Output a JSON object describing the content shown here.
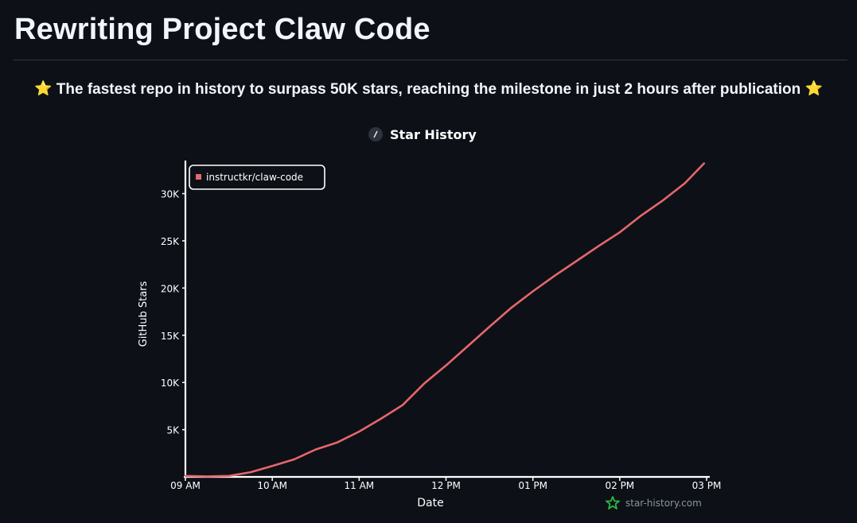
{
  "page": {
    "title": "Rewriting Project Claw Code",
    "subtitle_star_left": "⭐",
    "subtitle": "The fastest repo in history to surpass 50K stars, reaching the milestone in just 2 hours after publication",
    "subtitle_star_right": "⭐"
  },
  "colors": {
    "background": "#0d1117",
    "series": "#e5676b",
    "axis": "#ffffff",
    "watermark_logo": "#2fb344"
  },
  "chart_data": {
    "type": "line",
    "title": "Star History",
    "title_icon": "slash-logo-icon",
    "xlabel": "Date",
    "ylabel": "GitHub Stars",
    "x_ticks": [
      "09 AM",
      "10 AM",
      "11 AM",
      "12 PM",
      "01 PM",
      "02 PM",
      "03 PM"
    ],
    "x_range": [
      9.0,
      15.0
    ],
    "y_ticks": [
      5000,
      10000,
      15000,
      20000,
      25000,
      30000
    ],
    "y_tick_labels": [
      "5K",
      "10K",
      "15K",
      "20K",
      "25K",
      "30K"
    ],
    "ylim": [
      0,
      33500
    ],
    "grid": false,
    "legend_position": "top-left",
    "watermark": "star-history.com",
    "series": [
      {
        "name": "instructkr/claw-code",
        "x": [
          9.0,
          9.25,
          9.5,
          9.75,
          10.0,
          10.25,
          10.5,
          10.75,
          11.0,
          11.25,
          11.5,
          11.75,
          12.0,
          12.25,
          12.5,
          12.75,
          13.0,
          13.25,
          13.5,
          13.75,
          14.0,
          14.25,
          14.5,
          14.75,
          14.97
        ],
        "y": [
          100,
          50,
          100,
          500,
          1150,
          1850,
          2900,
          3650,
          4800,
          6150,
          7600,
          9900,
          11800,
          13850,
          15900,
          17900,
          19650,
          21300,
          22850,
          24400,
          25900,
          27700,
          29300,
          31100,
          33200
        ]
      }
    ]
  }
}
